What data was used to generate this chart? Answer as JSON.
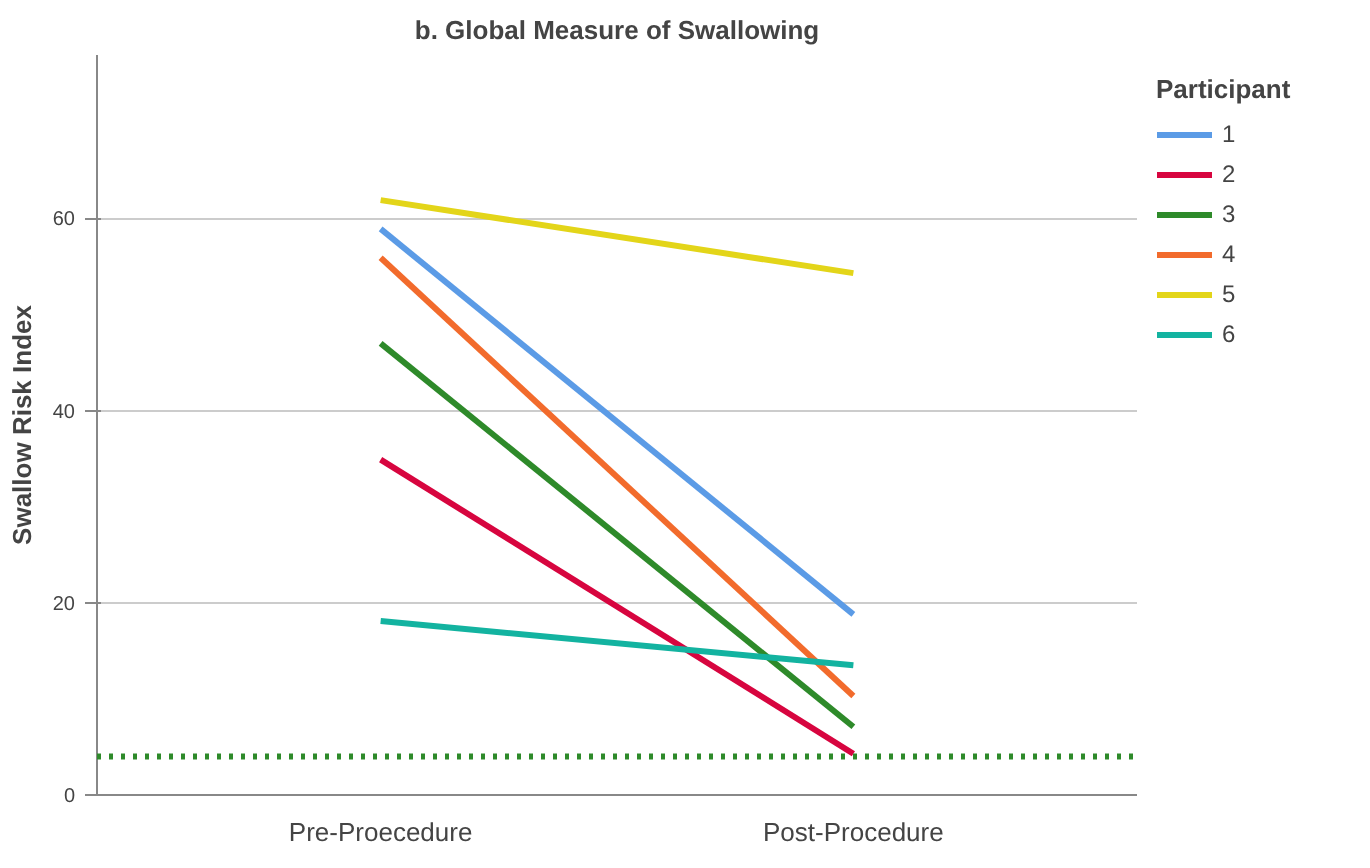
{
  "chart_data": {
    "type": "line",
    "title": "b. Global Measure of Swallowing",
    "ylabel": "Swallow Risk Index",
    "legend_title": "Participant",
    "categories": [
      "Pre-Proecedure",
      "Post-Procedure"
    ],
    "series": [
      {
        "name": "1",
        "color": "#5b9be6",
        "values": [
          58.9,
          18.8
        ]
      },
      {
        "name": "2",
        "color": "#d7053f",
        "values": [
          34.9,
          4.3
        ]
      },
      {
        "name": "3",
        "color": "#2e8a2a",
        "values": [
          47.0,
          7.1
        ]
      },
      {
        "name": "4",
        "color": "#f26b2c",
        "values": [
          55.9,
          10.3
        ]
      },
      {
        "name": "5",
        "color": "#e3d519",
        "values": [
          61.9,
          54.3
        ]
      },
      {
        "name": "6",
        "color": "#13b3a0",
        "values": [
          18.1,
          13.5
        ]
      }
    ],
    "ylim": [
      0,
      77
    ],
    "yticks": [
      0,
      20,
      40,
      60
    ],
    "grid": "y",
    "legend": "top right",
    "marker": "none",
    "line_style": "solid",
    "ref_lines": [
      {
        "axis": "y",
        "value": 4,
        "color": "#2e8a2a",
        "line_style": "dotted"
      }
    ]
  }
}
